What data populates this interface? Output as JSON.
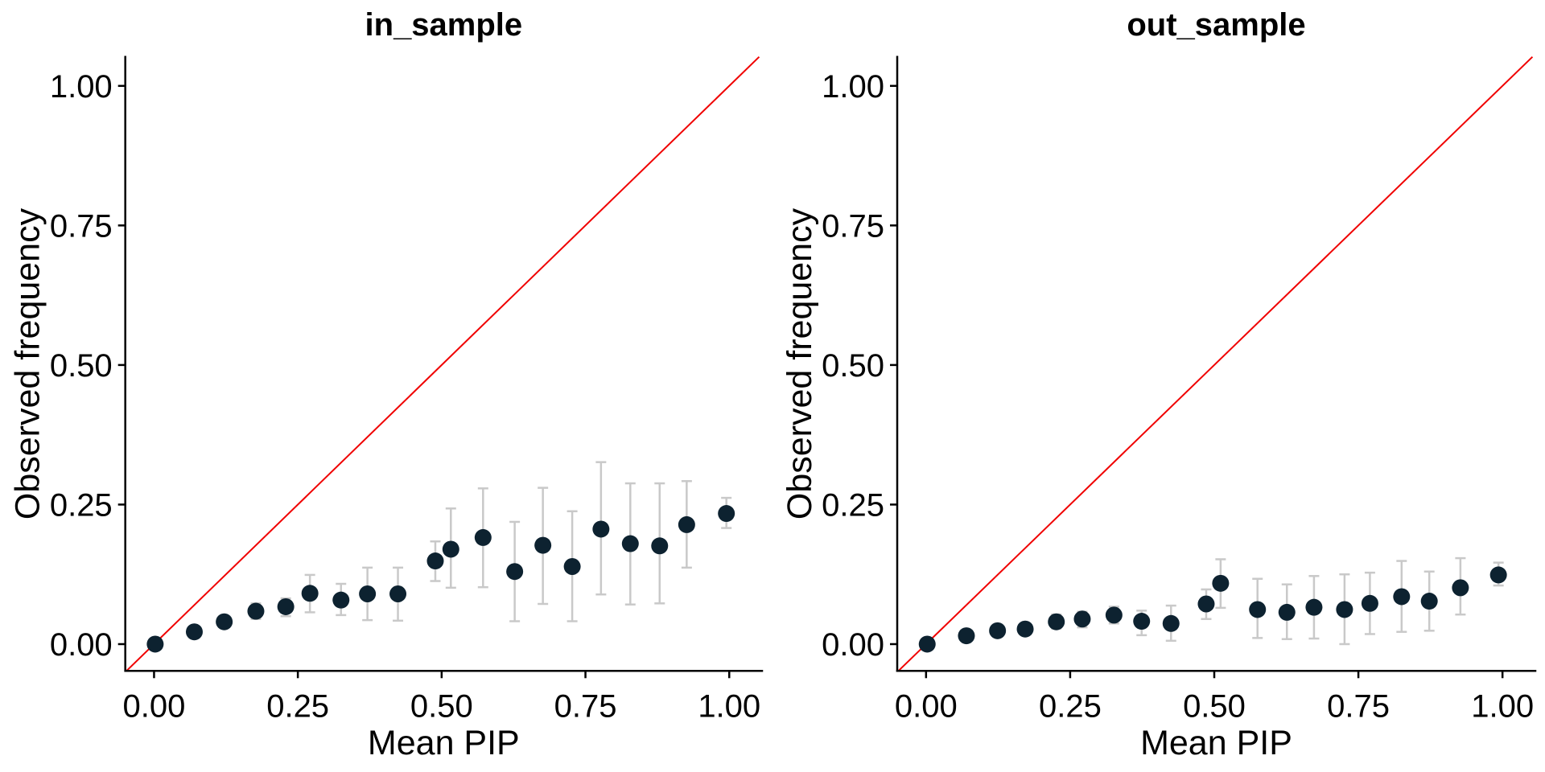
{
  "figure": {
    "background": "#ffffff",
    "shared_ylabel": "Observed frequency",
    "shared_xlabel": "Mean PIP"
  },
  "style": {
    "point_color": "#0d2230",
    "point_radius": 10.5,
    "errorbar_color": "#c9c9c9",
    "errorbar_width": 2.5,
    "errorbar_cap": 13,
    "reference_line_color": "#f00000",
    "reference_line_width": 2,
    "axis_color": "#000000",
    "axis_width": 2.5,
    "tick_length": 9,
    "tick_font_size": 40,
    "axis_title_font_size": 43,
    "panel_title_font_size": 40
  },
  "chart_data": [
    {
      "type": "scatter",
      "title": "in_sample",
      "xlabel": "Mean PIP",
      "ylabel": "Observed frequency",
      "xlim": [
        -0.05,
        1.057
      ],
      "ylim": [
        -0.048,
        1.052
      ],
      "x_ticks": [
        0,
        0.25,
        0.5,
        0.75,
        1
      ],
      "x_tick_labels": [
        "0.00",
        "0.25",
        "0.50",
        "0.75",
        "1.00"
      ],
      "y_ticks": [
        0,
        0.25,
        0.5,
        0.75,
        1
      ],
      "y_tick_labels": [
        "0.00",
        "0.25",
        "0.50",
        "0.75",
        "1.00"
      ],
      "grid": false,
      "legend": "none",
      "reference_line": {
        "type": "identity",
        "intercept": 0,
        "slope": 1
      },
      "series": [
        {
          "name": "binned PIP vs observed frequency",
          "points": [
            {
              "x": 0.002,
              "y": 0.0,
              "ymin": null,
              "ymax": null
            },
            {
              "x": 0.07,
              "y": 0.022,
              "ymin": null,
              "ymax": null
            },
            {
              "x": 0.122,
              "y": 0.04,
              "ymin": null,
              "ymax": null
            },
            {
              "x": 0.177,
              "y": 0.059,
              "ymin": 0.045,
              "ymax": 0.073
            },
            {
              "x": 0.229,
              "y": 0.067,
              "ymin": 0.05,
              "ymax": 0.082
            },
            {
              "x": 0.271,
              "y": 0.091,
              "ymin": 0.057,
              "ymax": 0.124
            },
            {
              "x": 0.325,
              "y": 0.079,
              "ymin": 0.052,
              "ymax": 0.108
            },
            {
              "x": 0.371,
              "y": 0.09,
              "ymin": 0.043,
              "ymax": 0.137
            },
            {
              "x": 0.424,
              "y": 0.09,
              "ymin": 0.042,
              "ymax": 0.137
            },
            {
              "x": 0.489,
              "y": 0.149,
              "ymin": 0.113,
              "ymax": 0.184
            },
            {
              "x": 0.516,
              "y": 0.17,
              "ymin": 0.101,
              "ymax": 0.243
            },
            {
              "x": 0.572,
              "y": 0.191,
              "ymin": 0.102,
              "ymax": 0.279
            },
            {
              "x": 0.627,
              "y": 0.13,
              "ymin": 0.041,
              "ymax": 0.219
            },
            {
              "x": 0.676,
              "y": 0.177,
              "ymin": 0.072,
              "ymax": 0.28
            },
            {
              "x": 0.727,
              "y": 0.139,
              "ymin": 0.041,
              "ymax": 0.238
            },
            {
              "x": 0.777,
              "y": 0.206,
              "ymin": 0.089,
              "ymax": 0.326
            },
            {
              "x": 0.828,
              "y": 0.18,
              "ymin": 0.071,
              "ymax": 0.288
            },
            {
              "x": 0.879,
              "y": 0.176,
              "ymin": 0.073,
              "ymax": 0.288
            },
            {
              "x": 0.926,
              "y": 0.214,
              "ymin": 0.137,
              "ymax": 0.292
            },
            {
              "x": 0.995,
              "y": 0.234,
              "ymin": 0.208,
              "ymax": 0.262
            }
          ]
        }
      ]
    },
    {
      "type": "scatter",
      "title": "out_sample",
      "xlabel": "Mean PIP",
      "ylabel": "Observed frequency",
      "xlim": [
        -0.05,
        1.057
      ],
      "ylim": [
        -0.048,
        1.052
      ],
      "x_ticks": [
        0,
        0.25,
        0.5,
        0.75,
        1
      ],
      "x_tick_labels": [
        "0.00",
        "0.25",
        "0.50",
        "0.75",
        "1.00"
      ],
      "y_ticks": [
        0,
        0.25,
        0.5,
        0.75,
        1
      ],
      "y_tick_labels": [
        "0.00",
        "0.25",
        "0.50",
        "0.75",
        "1.00"
      ],
      "grid": false,
      "legend": "none",
      "reference_line": {
        "type": "identity",
        "intercept": 0,
        "slope": 1
      },
      "series": [
        {
          "name": "binned PIP vs observed frequency",
          "points": [
            {
              "x": 0.002,
              "y": 0.0,
              "ymin": null,
              "ymax": null
            },
            {
              "x": 0.07,
              "y": 0.015,
              "ymin": null,
              "ymax": null
            },
            {
              "x": 0.124,
              "y": 0.024,
              "ymin": null,
              "ymax": null
            },
            {
              "x": 0.172,
              "y": 0.027,
              "ymin": null,
              "ymax": null
            },
            {
              "x": 0.226,
              "y": 0.04,
              "ymin": 0.028,
              "ymax": 0.053
            },
            {
              "x": 0.271,
              "y": 0.045,
              "ymin": 0.03,
              "ymax": 0.058
            },
            {
              "x": 0.326,
              "y": 0.052,
              "ymin": 0.037,
              "ymax": 0.067
            },
            {
              "x": 0.374,
              "y": 0.041,
              "ymin": 0.016,
              "ymax": 0.06
            },
            {
              "x": 0.425,
              "y": 0.037,
              "ymin": 0.006,
              "ymax": 0.069
            },
            {
              "x": 0.486,
              "y": 0.072,
              "ymin": 0.045,
              "ymax": 0.098
            },
            {
              "x": 0.511,
              "y": 0.109,
              "ymin": 0.065,
              "ymax": 0.152
            },
            {
              "x": 0.575,
              "y": 0.062,
              "ymin": 0.011,
              "ymax": 0.117
            },
            {
              "x": 0.626,
              "y": 0.057,
              "ymin": 0.009,
              "ymax": 0.107
            },
            {
              "x": 0.673,
              "y": 0.066,
              "ymin": 0.01,
              "ymax": 0.122
            },
            {
              "x": 0.726,
              "y": 0.062,
              "ymin": 0.0,
              "ymax": 0.125
            },
            {
              "x": 0.77,
              "y": 0.073,
              "ymin": 0.018,
              "ymax": 0.128
            },
            {
              "x": 0.825,
              "y": 0.085,
              "ymin": 0.022,
              "ymax": 0.149
            },
            {
              "x": 0.873,
              "y": 0.077,
              "ymin": 0.024,
              "ymax": 0.13
            },
            {
              "x": 0.927,
              "y": 0.101,
              "ymin": 0.053,
              "ymax": 0.154
            },
            {
              "x": 0.993,
              "y": 0.124,
              "ymin": 0.105,
              "ymax": 0.146
            }
          ]
        }
      ]
    }
  ]
}
